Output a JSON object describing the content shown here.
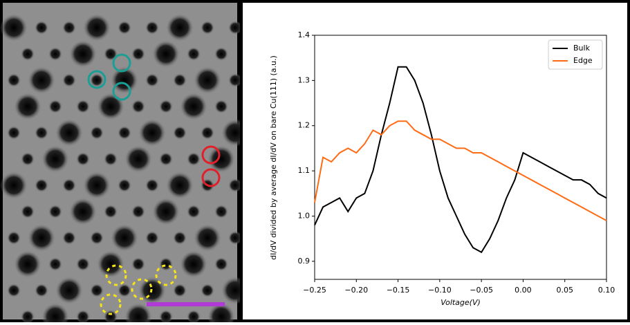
{
  "chart_data": {
    "type": "line",
    "xlabel": "Voltage(V)",
    "ylabel": "dI/dV divided by average dI/dV on bare Cu(111) (a.u.)",
    "x": [
      -0.25,
      -0.24,
      -0.23,
      -0.22,
      -0.21,
      -0.2,
      -0.19,
      -0.18,
      -0.17,
      -0.16,
      -0.15,
      -0.14,
      -0.13,
      -0.12,
      -0.11,
      -0.1,
      -0.09,
      -0.08,
      -0.07,
      -0.06,
      -0.05,
      -0.04,
      -0.03,
      -0.02,
      -0.01,
      0.0,
      0.01,
      0.02,
      0.03,
      0.04,
      0.05,
      0.06,
      0.07,
      0.08,
      0.09,
      0.1
    ],
    "series": [
      {
        "name": "Bulk",
        "color": "#000000",
        "values": [
          0.98,
          1.02,
          1.03,
          1.04,
          1.01,
          1.04,
          1.05,
          1.1,
          1.18,
          1.25,
          1.33,
          1.33,
          1.3,
          1.25,
          1.18,
          1.1,
          1.04,
          1.0,
          0.96,
          0.93,
          0.92,
          0.95,
          0.99,
          1.04,
          1.08,
          1.14,
          1.13,
          1.12,
          1.11,
          1.1,
          1.09,
          1.08,
          1.08,
          1.07,
          1.05,
          1.04
        ]
      },
      {
        "name": "Edge",
        "color": "#ff6a13",
        "values": [
          1.03,
          1.13,
          1.12,
          1.14,
          1.15,
          1.14,
          1.16,
          1.19,
          1.18,
          1.2,
          1.21,
          1.21,
          1.19,
          1.18,
          1.17,
          1.17,
          1.16,
          1.15,
          1.15,
          1.14,
          1.14,
          1.13,
          1.12,
          1.11,
          1.1,
          1.09,
          1.08,
          1.07,
          1.06,
          1.05,
          1.04,
          1.03,
          1.02,
          1.01,
          1.0,
          0.99
        ]
      }
    ],
    "xlim": [
      -0.25,
      0.1
    ],
    "xticks": [
      {
        "value": -0.25,
        "label": "−0.25"
      },
      {
        "value": -0.2,
        "label": "−0.20"
      },
      {
        "value": -0.15,
        "label": "−0.15"
      },
      {
        "value": -0.1,
        "label": "−0.10"
      },
      {
        "value": -0.05,
        "label": "−0.05"
      },
      {
        "value": 0.0,
        "label": "0.00"
      },
      {
        "value": 0.05,
        "label": "0.05"
      },
      {
        "value": 0.1,
        "label": "0.10"
      }
    ],
    "ylim": [
      0.86,
      1.4
    ],
    "yticks": [
      0.9,
      {
        "value": 1.0,
        "label": "1.0"
      },
      1.1,
      1.2,
      1.3,
      1.4
    ],
    "legend": "upper right"
  }
}
